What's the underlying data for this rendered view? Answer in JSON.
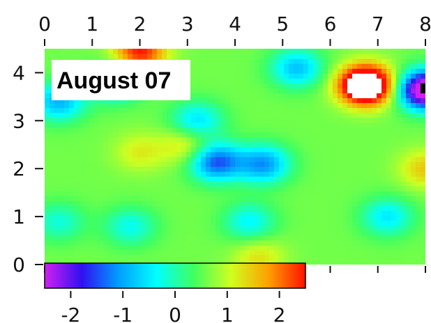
{
  "chart_data": {
    "type": "heatmap",
    "title": "August 07",
    "xlim": [
      0,
      8
    ],
    "ylim": [
      0,
      4.5
    ],
    "x_ticks": [
      "0",
      "1",
      "2",
      "3",
      "4",
      "5",
      "6",
      "7",
      "8"
    ],
    "y_ticks": [
      "0",
      "1",
      "2",
      "3",
      "4"
    ],
    "colorbar": {
      "range": [
        -2.5,
        2.5
      ],
      "ticks": [
        "-2",
        "-1",
        "0",
        "1",
        "2"
      ],
      "colors": [
        "#d020f0",
        "#3010f0",
        "#00a0ff",
        "#00ffff",
        "#40ff60",
        "#d0ff20",
        "#ffa000",
        "#ff1000"
      ]
    },
    "base_value": 0.6,
    "features": [
      {
        "x": 6.75,
        "y": 3.75,
        "value": 3.2,
        "note": "saturated high (white)"
      },
      {
        "x": 6.75,
        "y": 3.75,
        "value": 1.8
      },
      {
        "x": 8.0,
        "y": 3.65,
        "value": -3.2,
        "note": "saturated low (black)"
      },
      {
        "x": 3.6,
        "y": 2.15,
        "value": -1.5
      },
      {
        "x": 4.6,
        "y": 2.1,
        "value": -1.1
      },
      {
        "x": 5.3,
        "y": 4.1,
        "value": -0.8
      },
      {
        "x": 1.5,
        "y": 3.8,
        "value": -0.7
      },
      {
        "x": 0.3,
        "y": 3.4,
        "value": -0.9
      },
      {
        "x": 3.2,
        "y": 3.0,
        "value": -0.6
      },
      {
        "x": 2.0,
        "y": 2.35,
        "value": 1.2
      },
      {
        "x": 3.0,
        "y": 2.5,
        "value": 1.4
      },
      {
        "x": 7.2,
        "y": 1.0,
        "value": -0.5
      },
      {
        "x": 4.3,
        "y": 0.9,
        "value": -0.4
      },
      {
        "x": 1.8,
        "y": 0.8,
        "value": -0.3
      },
      {
        "x": 0.3,
        "y": 0.9,
        "value": -0.2
      },
      {
        "x": 4.5,
        "y": 0.15,
        "value": 1.3
      },
      {
        "x": 8.0,
        "y": 2.0,
        "value": 1.5
      },
      {
        "x": 2.0,
        "y": 4.45,
        "value": 2.5
      }
    ]
  }
}
